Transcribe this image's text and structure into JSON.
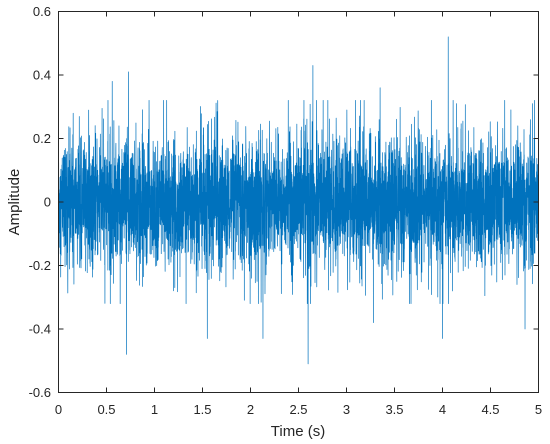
{
  "chart_data": {
    "type": "line",
    "xlabel": "Time (s)",
    "ylabel": "Amplitude",
    "xlim": [
      0,
      5
    ],
    "ylim": [
      -0.6,
      0.6
    ],
    "xticks": [
      0,
      0.5,
      1,
      1.5,
      2,
      2.5,
      3,
      3.5,
      4,
      4.5,
      5
    ],
    "xtick_labels": [
      "0",
      "0.5",
      "1",
      "1.5",
      "2",
      "2.5",
      "3",
      "3.5",
      "4",
      "4.5",
      "5"
    ],
    "yticks": [
      -0.6,
      -0.4,
      -0.2,
      0,
      0.2,
      0.4,
      0.6
    ],
    "ytick_labels": [
      "-0.6",
      "-0.4",
      "-0.2",
      "0",
      "0.2",
      "0.4",
      "0.6"
    ],
    "grid": false,
    "series": [
      {
        "color": "#0072BD",
        "description_of_signal": null,
        "envelope": {
          "typical_max": 0.2,
          "typical_min": -0.2
        },
        "peaks": [
          {
            "x": 0.56,
            "y": 0.38
          },
          {
            "x": 0.73,
            "y": 0.41
          },
          {
            "x": 0.71,
            "y": -0.48
          },
          {
            "x": 1.55,
            "y": -0.43
          },
          {
            "x": 2.13,
            "y": -0.43
          },
          {
            "x": 2.6,
            "y": -0.51
          },
          {
            "x": 2.65,
            "y": 0.43
          },
          {
            "x": 3.35,
            "y": 0.36
          },
          {
            "x": 3.28,
            "y": -0.38
          },
          {
            "x": 4.0,
            "y": 0.41
          },
          {
            "x": 4.06,
            "y": 0.52
          },
          {
            "x": 4.0,
            "y": -0.43
          },
          {
            "x": 4.86,
            "y": -0.4
          }
        ]
      }
    ]
  }
}
